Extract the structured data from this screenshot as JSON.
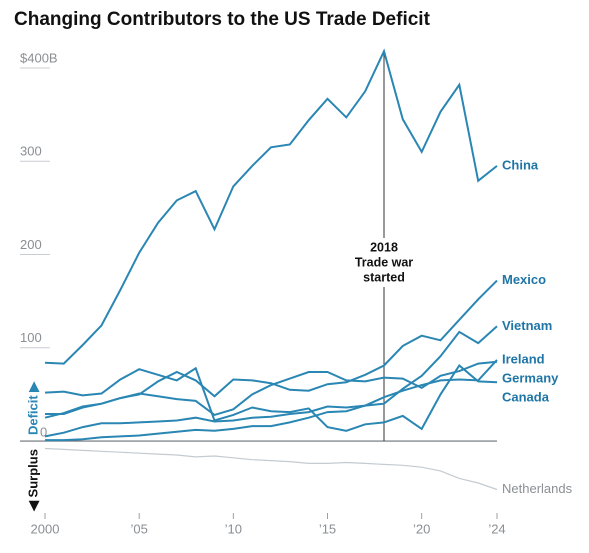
{
  "chart_data": {
    "type": "line",
    "title": "Changing Contributors to the US Trade Deficit",
    "deficit_label": "Deficit ▶",
    "surplus_label": "◀ Surplus",
    "x": [
      2000,
      2001,
      2002,
      2003,
      2004,
      2005,
      2006,
      2007,
      2008,
      2009,
      2010,
      2011,
      2012,
      2013,
      2014,
      2015,
      2016,
      2017,
      2018,
      2019,
      2020,
      2021,
      2022,
      2023,
      2024
    ],
    "xlim": [
      2000,
      2024
    ],
    "xticks": [
      2000,
      {
        "value": 2005,
        "label": "’05"
      },
      {
        "value": 2010,
        "label": "’10"
      },
      {
        "value": 2015,
        "label": "’15"
      },
      {
        "value": 2020,
        "label": "’20"
      },
      {
        "value": 2024,
        "label": "’24"
      }
    ],
    "ylim": [
      -75,
      415
    ],
    "yticks": [
      0,
      100,
      200,
      300,
      {
        "value": 400,
        "label": "$400B"
      }
    ],
    "annotation": {
      "x": 2018,
      "lines": [
        "2018",
        "Trade war",
        "started"
      ]
    },
    "series": [
      {
        "name": "Netherlands",
        "color": "#c3cbd1",
        "values": [
          -8,
          -9,
          -10,
          -11,
          -12,
          -13,
          -14,
          -15,
          -17,
          -16,
          -18,
          -20,
          -21,
          -22,
          -24,
          -24,
          -23,
          -24,
          -25,
          -26,
          -28,
          -32,
          -40,
          -45,
          -52
        ]
      },
      {
        "name": "China",
        "color": "#2a86b3",
        "values": [
          84,
          83,
          103,
          124,
          162,
          202,
          234,
          258,
          268,
          227,
          273,
          295,
          315,
          318,
          344,
          367,
          347,
          375,
          418,
          345,
          310,
          353,
          382,
          279,
          295
        ]
      },
      {
        "name": "Mexico",
        "color": "#2a86b3",
        "values": [
          25,
          30,
          37,
          40,
          46,
          50,
          64,
          74,
          65,
          48,
          66,
          65,
          62,
          55,
          54,
          61,
          63,
          71,
          81,
          102,
          113,
          108,
          130,
          152,
          172
        ]
      },
      {
        "name": "Vietnam",
        "color": "#2a86b3",
        "values": [
          1,
          1,
          2,
          4,
          5,
          6,
          8,
          10,
          12,
          11,
          13,
          16,
          16,
          20,
          25,
          31,
          32,
          38,
          40,
          56,
          70,
          91,
          117,
          105,
          123
        ]
      },
      {
        "name": "Ireland",
        "color": "#2a86b3",
        "values": [
          5,
          9,
          15,
          19,
          19,
          20,
          21,
          22,
          25,
          21,
          22,
          25,
          26,
          29,
          31,
          37,
          36,
          38,
          47,
          54,
          60,
          65,
          66,
          65,
          87
        ]
      },
      {
        "name": "Germany",
        "color": "#2a86b3",
        "values": [
          29,
          29,
          36,
          40,
          46,
          51,
          48,
          45,
          43,
          28,
          34,
          50,
          60,
          67,
          74,
          74,
          65,
          64,
          68,
          67,
          57,
          70,
          75,
          83,
          85
        ]
      },
      {
        "name": "Canada",
        "color": "#2a86b3",
        "values": [
          52,
          53,
          49,
          51,
          66,
          77,
          71,
          65,
          78,
          22,
          28,
          36,
          32,
          31,
          35,
          15,
          11,
          18,
          20,
          27,
          13,
          50,
          81,
          64,
          63
        ]
      }
    ]
  }
}
